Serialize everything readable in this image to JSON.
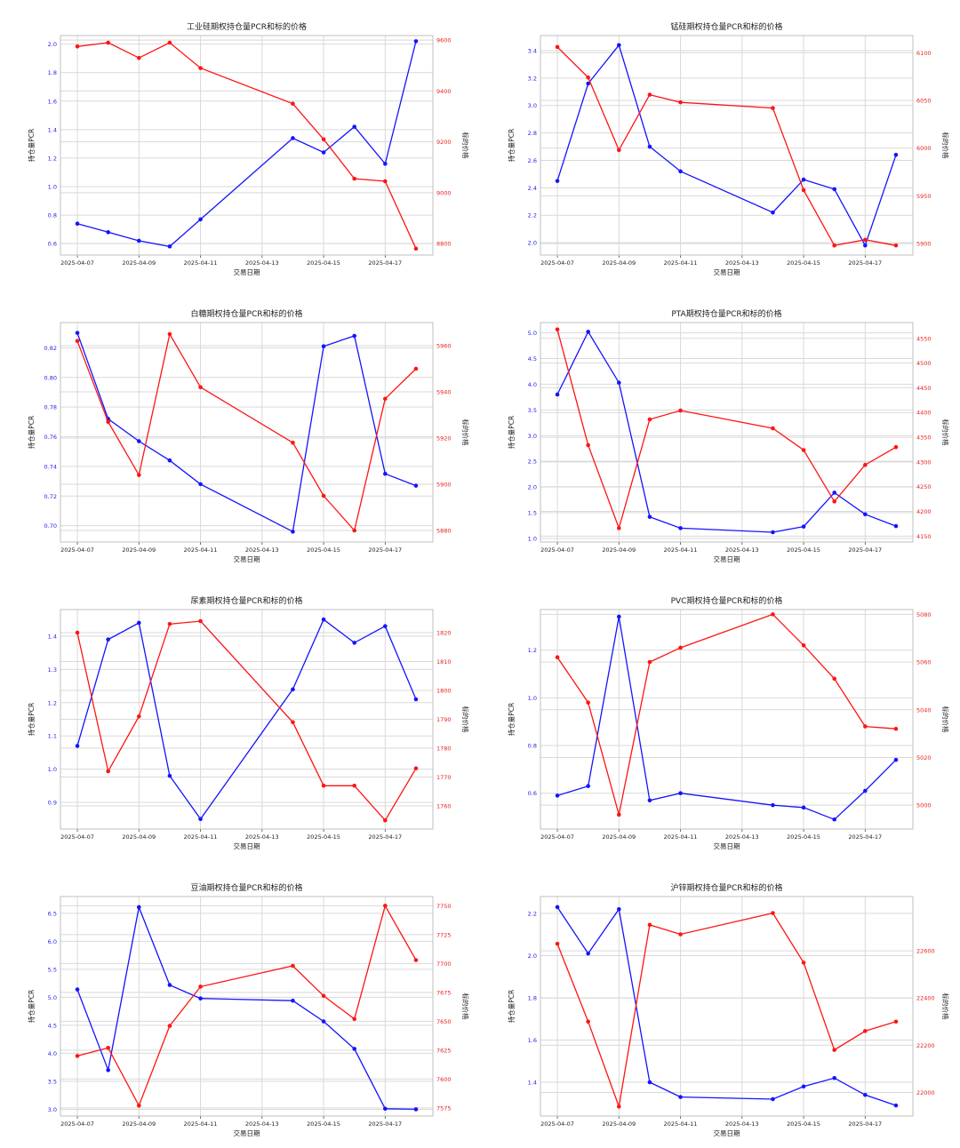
{
  "colors": {
    "pcr": "#1414ff",
    "price": "#ff1414",
    "grid": "#d9d9d9"
  },
  "charts": [
    {
      "title": "工业硅期权持仓量PCR和标的价格",
      "xlabel": "交易日期",
      "ylabel_left": "持仓量PCR",
      "ylabel_right": "标的价格",
      "xticks": [
        "2025-04-07",
        "2025-04-09",
        "2025-04-11",
        "2025-04-13",
        "2025-04-15",
        "2025-04-17"
      ],
      "ylim_left": [
        0.52,
        2.06
      ],
      "yticks_left": [
        "0.6",
        "0.8",
        "1.0",
        "1.2",
        "1.4",
        "1.6",
        "1.8",
        "2.0"
      ],
      "ylim_right": [
        8755,
        9618
      ],
      "yticks_right": [
        "8800",
        "9000",
        "9200",
        "9400",
        "9600"
      ]
    },
    {
      "title": "锰硅期权持仓量PCR和标的价格",
      "xlabel": "交易日期",
      "ylabel_left": "持仓量PCR",
      "ylabel_right": "标的价格",
      "xticks": [
        "2025-04-07",
        "2025-04-09",
        "2025-04-11",
        "2025-04-13",
        "2025-04-15",
        "2025-04-17"
      ],
      "ylim_left": [
        1.91,
        3.51
      ],
      "yticks_left": [
        "2.0",
        "2.2",
        "2.4",
        "2.6",
        "2.8",
        "3.0",
        "3.2",
        "3.4"
      ],
      "ylim_right": [
        5888,
        6118
      ],
      "yticks_right": [
        "5900",
        "5950",
        "6000",
        "6050",
        "6100"
      ]
    },
    {
      "title": "白糖期权持仓量PCR和标的价格",
      "xlabel": "交易日期",
      "ylabel_left": "持仓量PCR",
      "ylabel_right": "标的价格",
      "xticks": [
        "2025-04-07",
        "2025-04-09",
        "2025-04-11",
        "2025-04-13",
        "2025-04-15",
        "2025-04-17"
      ],
      "ylim_left": [
        0.689,
        0.837
      ],
      "yticks_left": [
        "0.70",
        "0.72",
        "0.74",
        "0.76",
        "0.78",
        "0.80",
        "0.82"
      ],
      "ylim_right": [
        5875,
        5970
      ],
      "yticks_right": [
        "5880",
        "5900",
        "5920",
        "5940",
        "5960"
      ]
    },
    {
      "title": "PTA期权持仓量PCR和标的价格",
      "xlabel": "交易日期",
      "ylabel_left": "持仓量PCR",
      "ylabel_right": "标的价格",
      "xticks": [
        "2025-04-07",
        "2025-04-09",
        "2025-04-11",
        "2025-04-13",
        "2025-04-15",
        "2025-04-17"
      ],
      "ylim_left": [
        0.93,
        5.2
      ],
      "yticks_left": [
        "1.0",
        "1.5",
        "2.0",
        "2.5",
        "3.0",
        "3.5",
        "4.0",
        "4.5",
        "5.0"
      ],
      "ylim_right": [
        4138,
        4582
      ],
      "yticks_right": [
        "4150",
        "4200",
        "4250",
        "4300",
        "4350",
        "4400",
        "4450",
        "4500",
        "4550"
      ]
    },
    {
      "title": "尿素期权持仓量PCR和标的价格",
      "xlabel": "交易日期",
      "ylabel_left": "持仓量PCR",
      "ylabel_right": "标的价格",
      "xticks": [
        "2025-04-07",
        "2025-04-09",
        "2025-04-11",
        "2025-04-13",
        "2025-04-15",
        "2025-04-17"
      ],
      "ylim_left": [
        0.82,
        1.48
      ],
      "yticks_left": [
        "0.9",
        "1.0",
        "1.1",
        "1.2",
        "1.3",
        "1.4"
      ],
      "ylim_right": [
        1752,
        1828
      ],
      "yticks_right": [
        "1760",
        "1770",
        "1780",
        "1790",
        "1800",
        "1810",
        "1820"
      ]
    },
    {
      "title": "PVC期权持仓量PCR和标的价格",
      "xlabel": "交易日期",
      "ylabel_left": "持仓量PCR",
      "ylabel_right": "标的价格",
      "xticks": [
        "2025-04-07",
        "2025-04-09",
        "2025-04-11",
        "2025-04-13",
        "2025-04-15",
        "2025-04-17"
      ],
      "ylim_left": [
        0.45,
        1.37
      ],
      "yticks_left": [
        "0.6",
        "0.8",
        "1.0",
        "1.2"
      ],
      "ylim_right": [
        4990,
        5082
      ],
      "yticks_right": [
        "5000",
        "5020",
        "5040",
        "5060",
        "5080"
      ]
    },
    {
      "title": "豆油期权持仓量PCR和标的价格",
      "xlabel": "交易日期",
      "ylabel_left": "持仓量PCR",
      "ylabel_right": "标的价格",
      "xticks": [
        "2025-04-07",
        "2025-04-09",
        "2025-04-11",
        "2025-04-13",
        "2025-04-15",
        "2025-04-17"
      ],
      "ylim_left": [
        2.88,
        6.8
      ],
      "yticks_left": [
        "3.0",
        "3.5",
        "4.0",
        "4.5",
        "5.0",
        "5.5",
        "6.0",
        "6.5"
      ],
      "ylim_right": [
        7568,
        7758
      ],
      "yticks_right": [
        "7575",
        "7600",
        "7625",
        "7650",
        "7675",
        "7700",
        "7725",
        "7750"
      ]
    },
    {
      "title": "沪锌期权持仓量PCR和标的价格",
      "xlabel": "交易日期",
      "ylabel_left": "持仓量PCR",
      "ylabel_right": "标的价格",
      "xticks": [
        "2025-04-07",
        "2025-04-09",
        "2025-04-11",
        "2025-04-13",
        "2025-04-15",
        "2025-04-17"
      ],
      "ylim_left": [
        1.24,
        2.28
      ],
      "yticks_left": [
        "1.4",
        "1.6",
        "1.8",
        "2.0",
        "2.2"
      ],
      "ylim_right": [
        21900,
        22830
      ],
      "yticks_right": [
        "22000",
        "22200",
        "22400",
        "22600"
      ]
    }
  ],
  "chart_data": [
    {
      "type": "line",
      "title": "工业硅期权持仓量PCR和标的价格",
      "xlabel": "交易日期",
      "x": [
        "2025-04-07",
        "2025-04-08",
        "2025-04-09",
        "2025-04-10",
        "2025-04-11",
        "2025-04-14",
        "2025-04-15",
        "2025-04-16",
        "2025-04-17",
        "2025-04-18"
      ],
      "series": [
        {
          "axis": "left",
          "values": [
            0.74,
            0.68,
            0.62,
            0.58,
            0.77,
            1.34,
            1.24,
            1.42,
            1.16,
            2.02
          ]
        },
        {
          "axis": "right",
          "values": [
            9575,
            9590,
            9530,
            9590,
            9490,
            9350,
            9210,
            9055,
            9045,
            8780
          ]
        }
      ]
    },
    {
      "type": "line",
      "title": "锰硅期权持仓量PCR和标的价格",
      "xlabel": "交易日期",
      "x": [
        "2025-04-07",
        "2025-04-08",
        "2025-04-09",
        "2025-04-10",
        "2025-04-11",
        "2025-04-14",
        "2025-04-15",
        "2025-04-16",
        "2025-04-17",
        "2025-04-18"
      ],
      "series": [
        {
          "axis": "left",
          "values": [
            2.45,
            3.16,
            3.44,
            2.7,
            2.52,
            2.22,
            2.46,
            2.39,
            1.98,
            2.64
          ]
        },
        {
          "axis": "right",
          "values": [
            6106,
            6074,
            5998,
            6056,
            6048,
            6042,
            5956,
            5898,
            5904,
            5898
          ]
        }
      ]
    },
    {
      "type": "line",
      "title": "白糖期权持仓量PCR和标的价格",
      "xlabel": "交易日期",
      "x": [
        "2025-04-07",
        "2025-04-08",
        "2025-04-09",
        "2025-04-10",
        "2025-04-11",
        "2025-04-14",
        "2025-04-15",
        "2025-04-16",
        "2025-04-17",
        "2025-04-18"
      ],
      "series": [
        {
          "axis": "left",
          "values": [
            0.83,
            0.772,
            0.757,
            0.744,
            0.728,
            0.696,
            0.821,
            0.828,
            0.735,
            0.727
          ]
        },
        {
          "axis": "right",
          "values": [
            5962,
            5927,
            5904,
            5965,
            5942,
            5918,
            5895,
            5880,
            5937,
            5950
          ]
        }
      ]
    },
    {
      "type": "line",
      "title": "PTA期权持仓量PCR和标的价格",
      "xlabel": "交易日期",
      "x": [
        "2025-04-07",
        "2025-04-08",
        "2025-04-09",
        "2025-04-10",
        "2025-04-11",
        "2025-04-14",
        "2025-04-15",
        "2025-04-16",
        "2025-04-17",
        "2025-04-18"
      ],
      "series": [
        {
          "axis": "left",
          "values": [
            3.8,
            5.02,
            4.03,
            1.42,
            1.2,
            1.12,
            1.23,
            1.89,
            1.47,
            1.24
          ]
        },
        {
          "axis": "right",
          "values": [
            4568,
            4334,
            4166,
            4386,
            4404,
            4368,
            4324,
            4220,
            4294,
            4330
          ]
        }
      ]
    },
    {
      "type": "line",
      "title": "尿素期权持仓量PCR和标的价格",
      "xlabel": "交易日期",
      "x": [
        "2025-04-07",
        "2025-04-08",
        "2025-04-09",
        "2025-04-10",
        "2025-04-11",
        "2025-04-14",
        "2025-04-15",
        "2025-04-16",
        "2025-04-17",
        "2025-04-18"
      ],
      "series": [
        {
          "axis": "left",
          "values": [
            1.07,
            1.39,
            1.44,
            0.98,
            0.85,
            1.24,
            1.45,
            1.38,
            1.43,
            1.21
          ]
        },
        {
          "axis": "right",
          "values": [
            1820,
            1772,
            1791,
            1823,
            1824,
            1789,
            1767,
            1767,
            1755,
            1773
          ]
        }
      ]
    },
    {
      "type": "line",
      "title": "PVC期权持仓量PCR和标的价格",
      "xlabel": "交易日期",
      "x": [
        "2025-04-07",
        "2025-04-08",
        "2025-04-09",
        "2025-04-10",
        "2025-04-11",
        "2025-04-14",
        "2025-04-15",
        "2025-04-16",
        "2025-04-17",
        "2025-04-18"
      ],
      "series": [
        {
          "axis": "left",
          "values": [
            0.59,
            0.63,
            1.34,
            0.57,
            0.6,
            0.55,
            0.54,
            0.49,
            0.61,
            0.74
          ]
        },
        {
          "axis": "right",
          "values": [
            5062,
            5043,
            4996,
            5060,
            5066,
            5080,
            5067,
            5053,
            5033,
            5032
          ]
        }
      ]
    },
    {
      "type": "line",
      "title": "豆油期权持仓量PCR和标的价格",
      "xlabel": "交易日期",
      "x": [
        "2025-04-07",
        "2025-04-08",
        "2025-04-09",
        "2025-04-10",
        "2025-04-11",
        "2025-04-14",
        "2025-04-15",
        "2025-04-16",
        "2025-04-17",
        "2025-04-18"
      ],
      "series": [
        {
          "axis": "left",
          "values": [
            5.14,
            3.7,
            6.61,
            5.22,
            4.98,
            4.94,
            4.57,
            4.08,
            3.01,
            3.0
          ]
        },
        {
          "axis": "right",
          "values": [
            7620,
            7627,
            7577,
            7646,
            7680,
            7698,
            7672,
            7652,
            7750,
            7703
          ]
        }
      ]
    },
    {
      "type": "line",
      "title": "沪锌期权持仓量PCR和标的价格",
      "xlabel": "交易日期",
      "x": [
        "2025-04-07",
        "2025-04-08",
        "2025-04-09",
        "2025-04-10",
        "2025-04-11",
        "2025-04-14",
        "2025-04-15",
        "2025-04-16",
        "2025-04-17",
        "2025-04-18"
      ],
      "series": [
        {
          "axis": "left",
          "values": [
            2.23,
            2.01,
            2.22,
            1.4,
            1.33,
            1.32,
            1.38,
            1.42,
            1.34,
            1.29
          ]
        },
        {
          "axis": "right",
          "values": [
            22630,
            22300,
            21940,
            22710,
            22670,
            22760,
            22550,
            22180,
            22260,
            22300
          ]
        }
      ]
    }
  ]
}
